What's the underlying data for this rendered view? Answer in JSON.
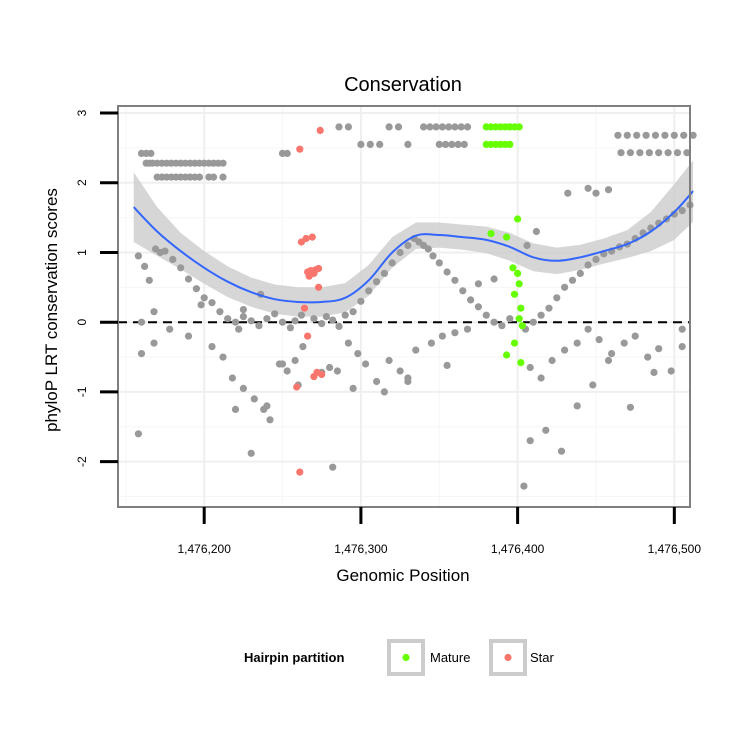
{
  "chart_data": {
    "type": "scatter",
    "title": "Conservation",
    "xlabel": "Genomic Position",
    "ylabel": "phyloP LRT conservation scores",
    "xlim": [
      1476145,
      1476510
    ],
    "ylim": [
      -2.65,
      3.1
    ],
    "x_ticks": [
      {
        "value": 1476200,
        "label": "1,476,200"
      },
      {
        "value": 1476300,
        "label": "1,476,300"
      },
      {
        "value": 1476400,
        "label": "1,476,400"
      },
      {
        "value": 1476500,
        "label": "1,476,500"
      }
    ],
    "y_ticks": [
      {
        "value": -2,
        "label": "-2"
      },
      {
        "value": -1,
        "label": "-1"
      },
      {
        "value": 0,
        "label": "0"
      },
      {
        "value": 1,
        "label": "1"
      },
      {
        "value": 2,
        "label": "2"
      },
      {
        "value": 3,
        "label": "3"
      }
    ],
    "reference_line": {
      "y": 0,
      "style": "dashed"
    },
    "grid": true,
    "legend": {
      "title": "Hairpin partition",
      "placement": "bottom",
      "entries": [
        {
          "label": "Mature",
          "color": "#66ff00"
        },
        {
          "label": "Star",
          "color": "#f8766d"
        }
      ]
    },
    "colors": {
      "other": "#999999",
      "mature": "#66ff00",
      "star": "#f8766d",
      "smooth": "#3366ff",
      "band": "#cccccc"
    },
    "smooth_curve": {
      "x": [
        1476155,
        1476170,
        1476185,
        1476200,
        1476215,
        1476230,
        1476245,
        1476260,
        1476275,
        1476290,
        1476305,
        1476320,
        1476335,
        1476350,
        1476365,
        1476380,
        1476395,
        1476410,
        1476425,
        1476440,
        1476455,
        1476470,
        1476485,
        1476500,
        1476512
      ],
      "y": [
        1.65,
        1.3,
        1.02,
        0.78,
        0.58,
        0.43,
        0.33,
        0.29,
        0.29,
        0.35,
        0.6,
        1.0,
        1.24,
        1.25,
        1.22,
        1.18,
        1.08,
        0.93,
        0.88,
        0.93,
        1.02,
        1.12,
        1.3,
        1.58,
        1.88
      ]
    },
    "ci_band": {
      "x": [
        1476155,
        1476170,
        1476185,
        1476200,
        1476215,
        1476230,
        1476245,
        1476260,
        1476275,
        1476290,
        1476305,
        1476320,
        1476335,
        1476350,
        1476365,
        1476380,
        1476395,
        1476410,
        1476425,
        1476440,
        1476455,
        1476470,
        1476485,
        1476500,
        1476512
      ],
      "upper": [
        2.15,
        1.65,
        1.28,
        1.02,
        0.8,
        0.64,
        0.54,
        0.5,
        0.5,
        0.56,
        0.82,
        1.22,
        1.43,
        1.43,
        1.4,
        1.37,
        1.28,
        1.13,
        1.07,
        1.11,
        1.2,
        1.32,
        1.58,
        1.98,
        2.32
      ],
      "lower": [
        1.15,
        0.95,
        0.76,
        0.55,
        0.36,
        0.22,
        0.12,
        0.08,
        0.08,
        0.14,
        0.38,
        0.78,
        1.05,
        1.07,
        1.04,
        0.99,
        0.88,
        0.73,
        0.69,
        0.75,
        0.84,
        0.92,
        1.02,
        1.18,
        1.44
      ]
    },
    "series": [
      {
        "name": "Mature",
        "color": "#66ff00",
        "x": [
          1476380,
          1476383,
          1476386,
          1476389,
          1476392,
          1476395,
          1476398,
          1476401,
          1476380,
          1476383,
          1476386,
          1476389,
          1476392,
          1476395,
          1476383,
          1476393,
          1476397,
          1476400,
          1476401,
          1476398,
          1476402,
          1476401,
          1476403,
          1476393,
          1476398,
          1476402,
          1476400
        ],
        "y": [
          2.8,
          2.8,
          2.8,
          2.8,
          2.8,
          2.8,
          2.8,
          2.8,
          2.55,
          2.55,
          2.55,
          2.55,
          2.55,
          2.55,
          1.27,
          1.22,
          0.78,
          0.7,
          0.55,
          0.4,
          0.2,
          0.05,
          -0.05,
          -0.47,
          -0.3,
          -0.58,
          1.48
        ]
      },
      {
        "name": "Star",
        "color": "#f8766d",
        "x": [
          1476274,
          1476261,
          1476262,
          1476265,
          1476269,
          1476271,
          1476266,
          1476268,
          1476270,
          1476267,
          1476273,
          1476264,
          1476266,
          1476272,
          1476270,
          1476275,
          1476259,
          1476261,
          1476273
        ],
        "y": [
          2.75,
          2.48,
          1.15,
          1.2,
          1.22,
          0.75,
          0.72,
          0.74,
          0.7,
          0.66,
          0.5,
          0.2,
          -0.2,
          -0.72,
          -0.78,
          -0.75,
          -0.93,
          -2.15,
          0.77
        ]
      },
      {
        "name": "",
        "color": "#999999",
        "x": [
          1476163,
          1476165,
          1476167,
          1476170,
          1476173,
          1476176,
          1476179,
          1476182,
          1476185,
          1476188,
          1476191,
          1476194,
          1476197,
          1476200,
          1476203,
          1476206,
          1476209,
          1476212,
          1476170,
          1476173,
          1476176,
          1476179,
          1476182,
          1476185,
          1476188,
          1476191,
          1476194,
          1476197,
          1476203,
          1476206,
          1476212,
          1476160,
          1476163,
          1476166,
          1476169,
          1476172,
          1476158,
          1476162,
          1476165,
          1476168,
          1476175,
          1476180,
          1476185,
          1476190,
          1476195,
          1476200,
          1476205,
          1476210,
          1476215,
          1476220,
          1476222,
          1476225,
          1476230,
          1476235,
          1476240,
          1476245,
          1476250,
          1476255,
          1476258,
          1476262,
          1476270,
          1476275,
          1476278,
          1476282,
          1476286,
          1476290,
          1476295,
          1476300,
          1476305,
          1476310,
          1476315,
          1476320,
          1476325,
          1476330,
          1476334,
          1476337,
          1476340,
          1476343,
          1476346,
          1476350,
          1476355,
          1476360,
          1476365,
          1476370,
          1476375,
          1476380,
          1476385,
          1476390,
          1476395,
          1476405,
          1476410,
          1476415,
          1476420,
          1476425,
          1476430,
          1476435,
          1476440,
          1476445,
          1476450,
          1476455,
          1476460,
          1476465,
          1476470,
          1476475,
          1476480,
          1476485,
          1476490,
          1476495,
          1476500,
          1476505,
          1476510,
          1476160,
          1476168,
          1476178,
          1476190,
          1476198,
          1476205,
          1476212,
          1476218,
          1476225,
          1476232,
          1476238,
          1476242,
          1476248,
          1476253,
          1476258,
          1476263,
          1476280,
          1476285,
          1476292,
          1476298,
          1476303,
          1476310,
          1476318,
          1476325,
          1476330,
          1476335,
          1476345,
          1476352,
          1476360,
          1476368,
          1476375,
          1476385,
          1476408,
          1476415,
          1476422,
          1476430,
          1476438,
          1476445,
          1476452,
          1476460,
          1476468,
          1476475,
          1476483,
          1476490,
          1476498,
          1476505,
          1476158,
          1476220,
          1476230,
          1476240,
          1476250,
          1476260,
          1476275,
          1476295,
          1476315,
          1476330,
          1476355,
          1476408,
          1476418,
          1476428,
          1476438,
          1476448,
          1476458,
          1476472,
          1476487,
          1476505,
          1476160,
          1476225,
          1476236,
          1476282,
          1476406,
          1476412,
          1476432,
          1476445,
          1476450,
          1476458,
          1476464,
          1476470,
          1476476,
          1476482,
          1476488,
          1476494,
          1476500,
          1476506,
          1476512,
          1476466,
          1476472,
          1476478,
          1476484,
          1476490,
          1476496,
          1476502,
          1476508,
          1476340,
          1476344,
          1476348,
          1476352,
          1476356,
          1476360,
          1476364,
          1476368,
          1476350,
          1476354,
          1476358,
          1476362,
          1476366,
          1476286,
          1476292,
          1476300,
          1476306,
          1476312,
          1476318,
          1476324,
          1476330,
          1476250,
          1476253,
          1476404
        ],
        "y": [
          2.28,
          2.28,
          2.28,
          2.28,
          2.28,
          2.28,
          2.28,
          2.28,
          2.28,
          2.28,
          2.28,
          2.28,
          2.28,
          2.28,
          2.28,
          2.28,
          2.28,
          2.28,
          2.08,
          2.08,
          2.08,
          2.08,
          2.08,
          2.08,
          2.08,
          2.08,
          2.08,
          2.08,
          2.08,
          2.08,
          2.08,
          2.42,
          2.42,
          2.42,
          1.05,
          1.0,
          0.95,
          0.8,
          0.6,
          0.15,
          1.02,
          0.9,
          0.78,
          0.62,
          0.48,
          0.35,
          0.28,
          0.15,
          0.05,
          0.0,
          -0.1,
          0.08,
          0.02,
          -0.05,
          0.05,
          0.12,
          0.0,
          -0.08,
          0.02,
          0.1,
          0.05,
          -0.02,
          0.08,
          0.03,
          -0.06,
          0.1,
          0.15,
          0.3,
          0.45,
          0.58,
          0.7,
          0.85,
          1.0,
          1.1,
          1.2,
          1.15,
          1.1,
          1.05,
          0.95,
          0.85,
          0.72,
          0.6,
          0.45,
          0.32,
          0.22,
          0.1,
          0.0,
          -0.05,
          0.05,
          -0.1,
          0.0,
          0.1,
          0.2,
          0.35,
          0.5,
          0.6,
          0.7,
          0.82,
          0.9,
          0.98,
          1.02,
          1.08,
          1.12,
          1.2,
          1.28,
          1.35,
          1.42,
          1.48,
          1.55,
          1.6,
          1.68,
          -0.45,
          -0.3,
          -0.1,
          -0.2,
          0.25,
          -0.35,
          -0.5,
          -0.8,
          -0.95,
          -1.1,
          -1.25,
          -1.4,
          -0.6,
          -0.7,
          -0.55,
          -0.35,
          -0.65,
          -0.7,
          -0.3,
          -0.45,
          -0.6,
          -0.85,
          -0.55,
          -0.7,
          -0.8,
          -0.4,
          -0.3,
          -0.2,
          -0.15,
          -0.1,
          0.55,
          0.62,
          -0.65,
          -0.8,
          -0.55,
          -0.4,
          -0.3,
          -0.1,
          -0.25,
          -0.45,
          -0.3,
          -0.2,
          -0.5,
          -0.38,
          -0.7,
          -0.35,
          -1.6,
          -1.25,
          -1.88,
          -1.2,
          -0.6,
          -0.9,
          -0.72,
          -0.95,
          -1.0,
          -0.85,
          -0.62,
          -1.7,
          -1.55,
          -1.85,
          -1.2,
          -0.9,
          -0.55,
          -1.22,
          -0.72,
          -0.1,
          0.0,
          0.18,
          0.4,
          -2.08,
          1.1,
          1.3,
          1.85,
          1.92,
          1.85,
          1.9,
          2.68,
          2.68,
          2.68,
          2.68,
          2.68,
          2.68,
          2.68,
          2.68,
          2.68,
          2.43,
          2.43,
          2.43,
          2.43,
          2.43,
          2.43,
          2.43,
          2.43,
          2.8,
          2.8,
          2.8,
          2.8,
          2.8,
          2.8,
          2.8,
          2.8,
          2.55,
          2.55,
          2.55,
          2.55,
          2.55,
          2.8,
          2.8,
          2.55,
          2.55,
          2.55,
          2.8,
          2.8,
          2.55,
          2.42,
          2.42,
          -2.35
        ]
      }
    ]
  }
}
